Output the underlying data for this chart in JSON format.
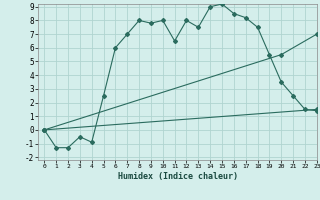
{
  "xlabel": "Humidex (Indice chaleur)",
  "background_color": "#d4eeeb",
  "grid_color": "#b0d4d0",
  "line_color": "#2a6b5e",
  "xlim": [
    -0.5,
    23
  ],
  "ylim": [
    -2.2,
    9.2
  ],
  "xticks": [
    0,
    1,
    2,
    3,
    4,
    5,
    6,
    7,
    8,
    9,
    10,
    11,
    12,
    13,
    14,
    15,
    16,
    17,
    18,
    19,
    20,
    21,
    22,
    23
  ],
  "yticks": [
    -2,
    -1,
    0,
    1,
    2,
    3,
    4,
    5,
    6,
    7,
    8,
    9
  ],
  "line1_x": [
    0,
    1,
    2,
    3,
    4,
    5,
    6,
    7,
    8,
    9,
    10,
    11,
    12,
    13,
    14,
    15,
    16,
    17,
    18,
    19,
    20,
    21,
    22,
    23
  ],
  "line1_y": [
    0,
    -1.3,
    -1.3,
    -0.5,
    -0.9,
    2.5,
    6.0,
    7.0,
    8.0,
    7.8,
    8.0,
    6.5,
    8.0,
    7.5,
    9.0,
    9.2,
    8.5,
    8.2,
    7.5,
    5.5,
    3.5,
    2.5,
    1.5,
    1.4
  ],
  "line2_x": [
    0,
    20,
    23
  ],
  "line2_y": [
    0,
    5.5,
    7.0
  ],
  "line3_x": [
    0,
    23
  ],
  "line3_y": [
    0,
    1.5
  ]
}
